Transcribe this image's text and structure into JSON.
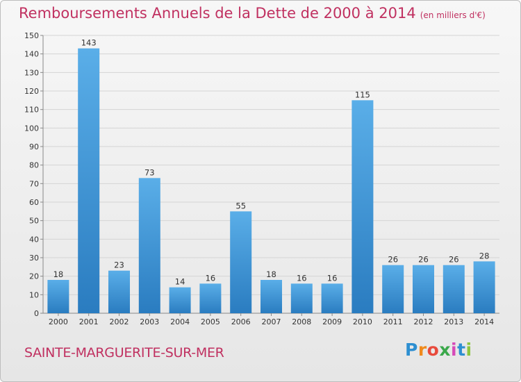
{
  "title": "Remboursements Annuels de la Dette de 2000 à 2014",
  "title_unit": "(en milliers d'€)",
  "town": "SAINTE-MARGUERITE-SUR-MER",
  "logo": {
    "letters": [
      "P",
      "r",
      "o",
      "x",
      "i",
      "t",
      "i"
    ],
    "colors": [
      "#2d8fd1",
      "#f08a1c",
      "#e84a3c",
      "#3aa84a",
      "#d64ab8",
      "#2d8fd1",
      "#8cc63f"
    ]
  },
  "colors": {
    "accent": "#c03060",
    "bar_light": "#5aaee8",
    "bar_dark": "#2a7cc0",
    "axis_text": "#333333"
  },
  "chart_data": {
    "type": "bar",
    "categories": [
      "2000",
      "2001",
      "2002",
      "2003",
      "2004",
      "2005",
      "2006",
      "2007",
      "2008",
      "2009",
      "2010",
      "2011",
      "2012",
      "2013",
      "2014"
    ],
    "values": [
      18,
      143,
      23,
      73,
      14,
      16,
      55,
      18,
      16,
      16,
      115,
      26,
      26,
      26,
      28
    ],
    "title": "Remboursements Annuels de la Dette de 2000 à 2014",
    "ylim": [
      0,
      150
    ],
    "yticks": [
      0,
      10,
      20,
      30,
      40,
      50,
      60,
      70,
      80,
      90,
      100,
      110,
      120,
      130,
      140,
      150
    ],
    "grid": true,
    "legend": "none"
  }
}
